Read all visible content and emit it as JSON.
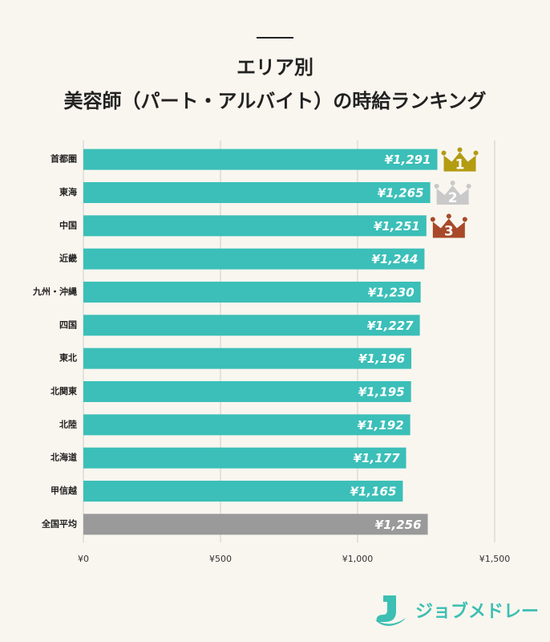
{
  "chart_data": {
    "type": "bar",
    "orientation": "horizontal",
    "title_lines": [
      "エリア別",
      "美容師（パート・アルバイト）の時給ランキング"
    ],
    "categories": [
      "首都圏",
      "東海",
      "中国",
      "近畿",
      "九州・沖縄",
      "四国",
      "東北",
      "北関東",
      "北陸",
      "北海道",
      "甲信越",
      "全国平均"
    ],
    "values": [
      1291,
      1265,
      1251,
      1244,
      1230,
      1227,
      1196,
      1195,
      1192,
      1177,
      1165,
      1256
    ],
    "value_labels": [
      "¥1,291",
      "¥1,265",
      "¥1,251",
      "¥1,244",
      "¥1,230",
      "¥1,227",
      "¥1,196",
      "¥1,195",
      "¥1,192",
      "¥1,177",
      "¥1,165",
      "¥1,256"
    ],
    "colors": [
      "#3bbfb8",
      "#3bbfb8",
      "#3bbfb8",
      "#3bbfb8",
      "#3bbfb8",
      "#3bbfb8",
      "#3bbfb8",
      "#3bbfb8",
      "#3bbfb8",
      "#3bbfb8",
      "#3bbfb8",
      "#9a9a9a"
    ],
    "ranks": [
      "1",
      "2",
      "3"
    ],
    "rank_colors": [
      "#b39b12",
      "#c9c9c9",
      "#a8492a"
    ],
    "xlim": [
      0,
      1500
    ],
    "xticks": [
      {
        "value": 0,
        "label": "¥0"
      },
      {
        "value": 500,
        "label": "¥500"
      },
      {
        "value": 1000,
        "label": "¥1,000"
      },
      {
        "value": 1500,
        "label": "¥1,500"
      }
    ],
    "grid": true
  },
  "logo": "ジョブメドレー"
}
